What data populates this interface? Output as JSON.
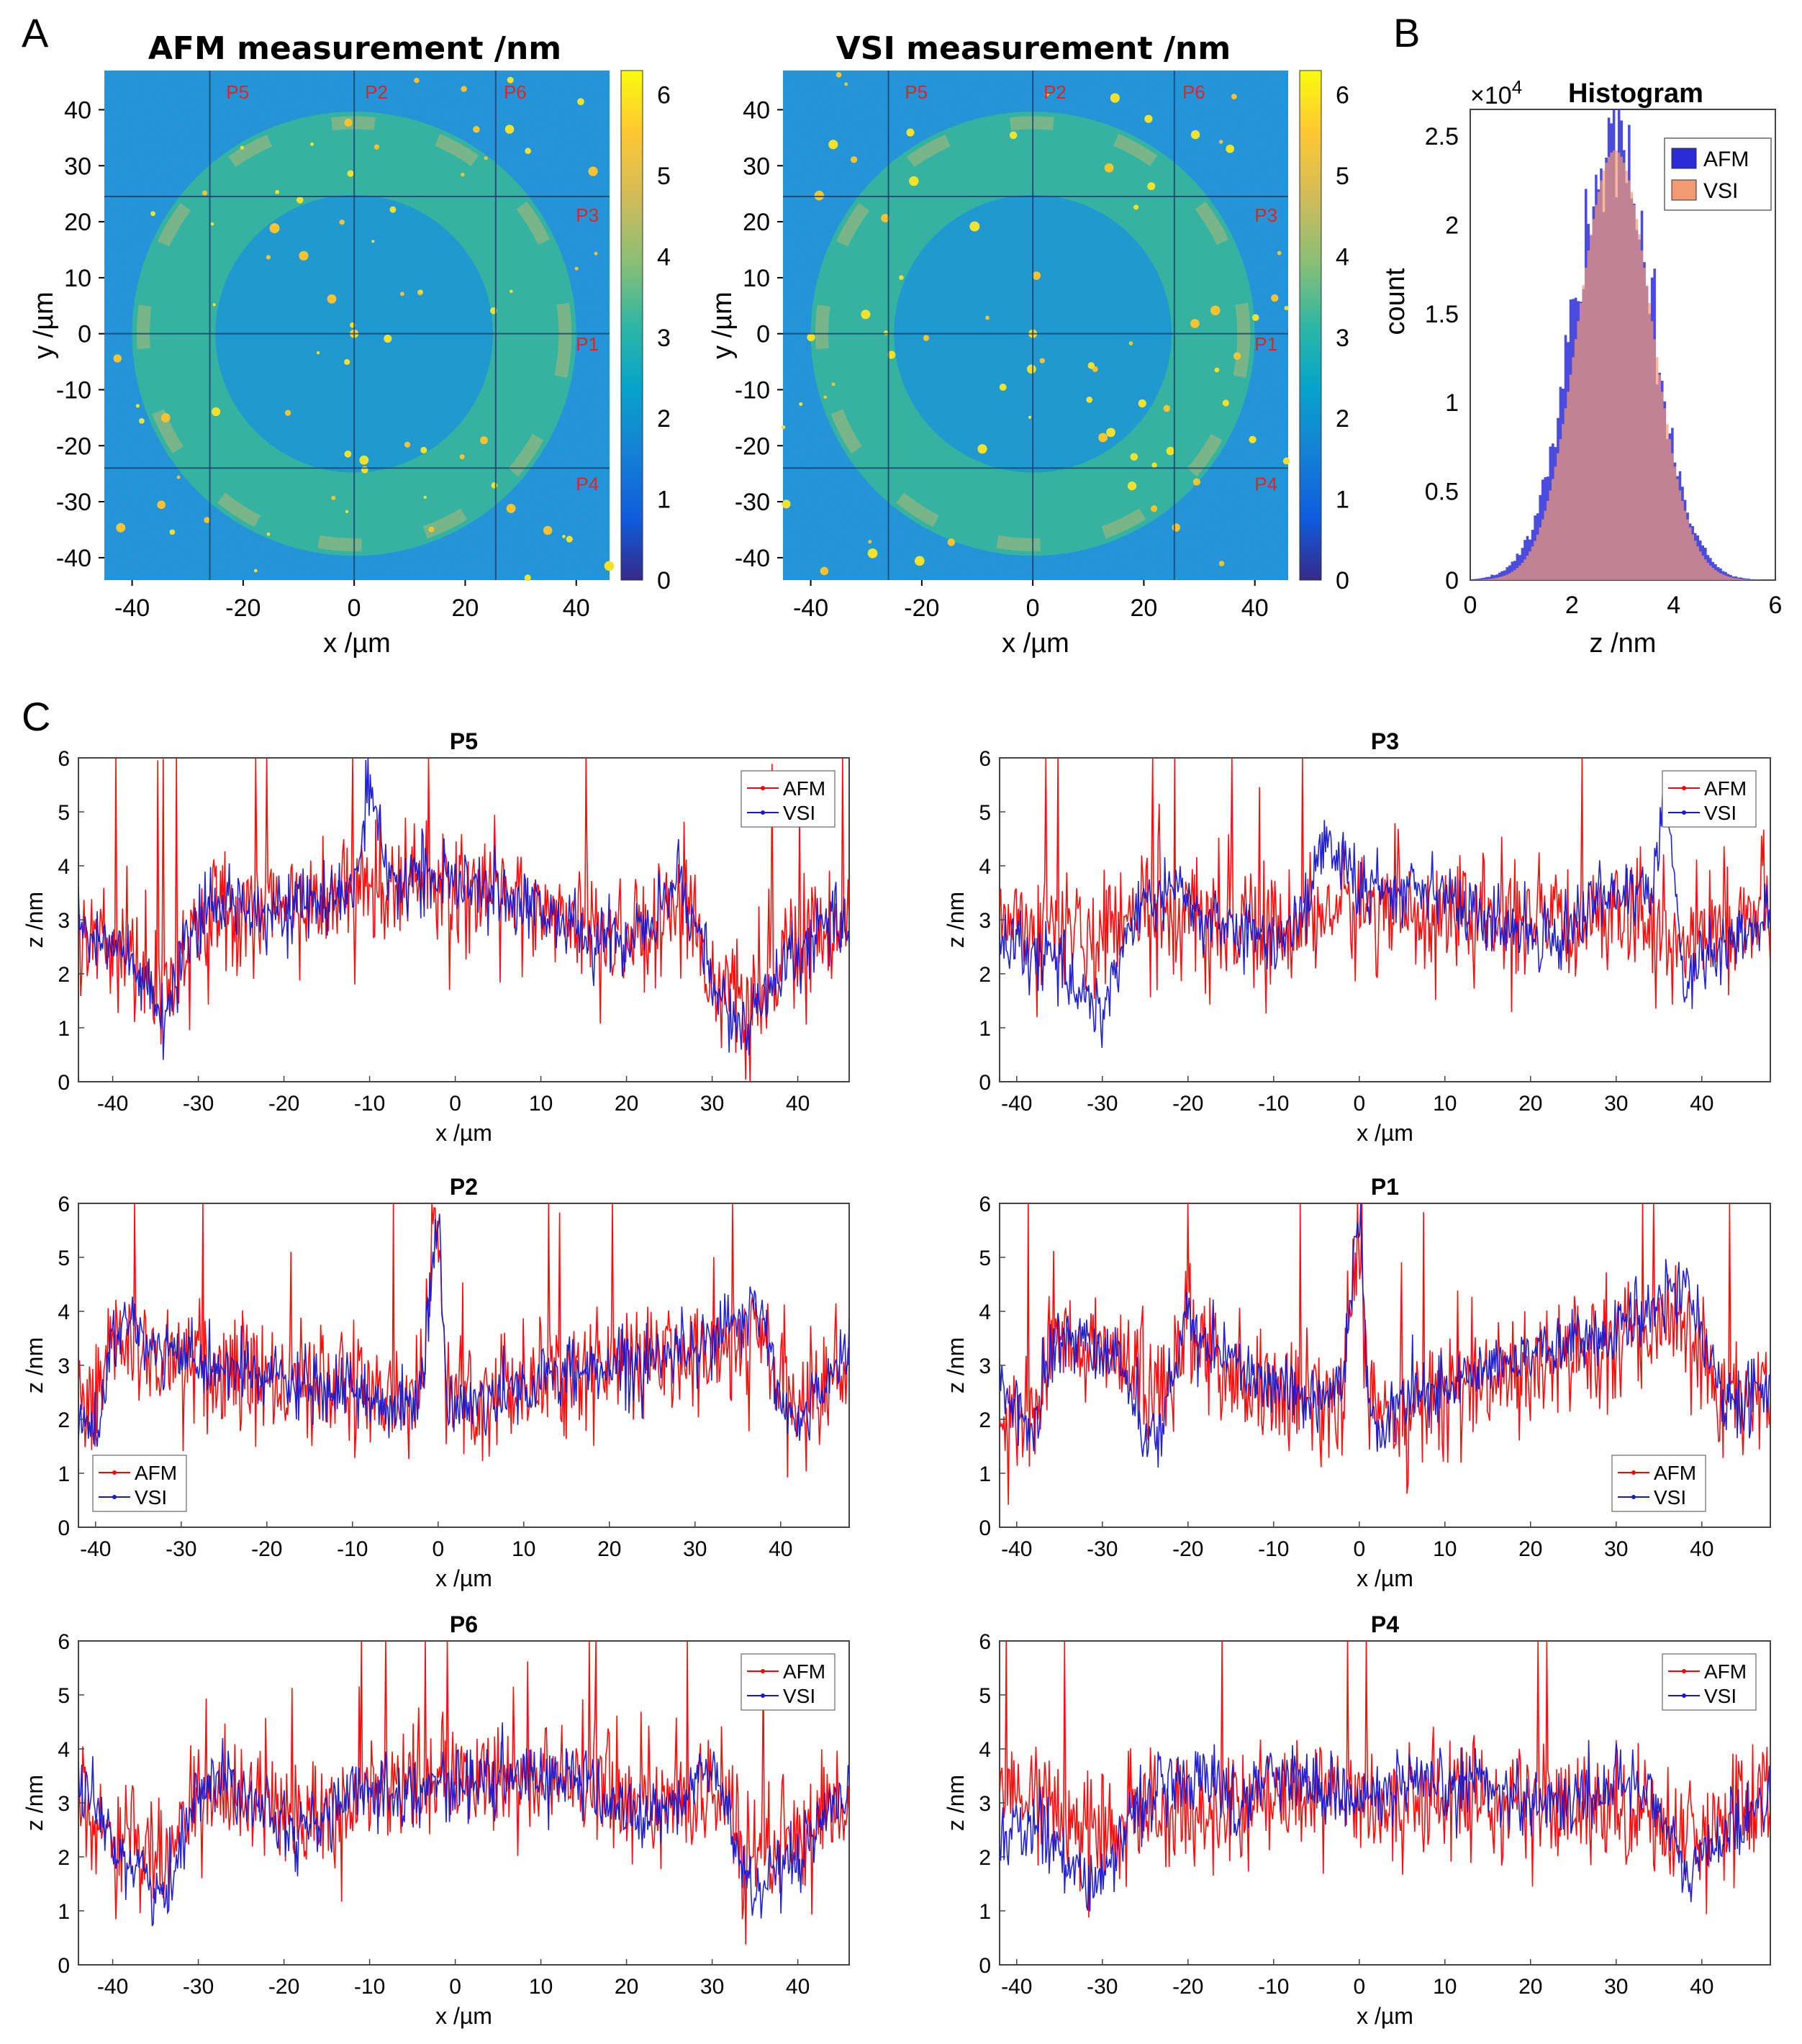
{
  "panels": {
    "a": "A",
    "b": "B",
    "c": "C"
  },
  "maps": [
    {
      "id": "afm",
      "title": "AFM measurement /nm",
      "xlabel": "x /µm",
      "ylabel": "y /µm",
      "xlim": [
        -45,
        46
      ],
      "ylim": [
        -44,
        47
      ],
      "xticks": [
        -40,
        -20,
        0,
        20,
        40
      ],
      "yticks": [
        40,
        30,
        20,
        10,
        0,
        -10,
        -20,
        -30,
        -40
      ],
      "grid_x": [
        -26,
        0,
        25.5
      ],
      "grid_y": [
        24.5,
        0,
        -24
      ],
      "ring_outer_radius": 40,
      "ring_inner_radius": 25,
      "cbar_ticks": [
        6,
        5,
        4,
        3,
        2,
        1,
        0
      ],
      "cbar_range": [
        0,
        6.3
      ],
      "profile_markers": [
        {
          "label": "P5",
          "x": -21,
          "y": 42
        },
        {
          "label": "P2",
          "x": 4,
          "y": 42
        },
        {
          "label": "P6",
          "x": 29,
          "y": 42
        },
        {
          "label": "P3",
          "x": 42,
          "y": 20
        },
        {
          "label": "P1",
          "x": 42,
          "y": -3
        },
        {
          "label": "P4",
          "x": 42,
          "y": -28
        }
      ]
    },
    {
      "id": "vsi",
      "title": "VSI measurement /nm",
      "xlabel": "x /µm",
      "ylabel": "y /µm",
      "xlim": [
        -45,
        46
      ],
      "ylim": [
        -44,
        47
      ],
      "xticks": [
        -40,
        -20,
        0,
        20,
        40
      ],
      "yticks": [
        40,
        30,
        20,
        10,
        0,
        -10,
        -20,
        -30,
        -40
      ],
      "grid_x": [
        -26,
        0,
        25.5
      ],
      "grid_y": [
        24.5,
        0,
        -24
      ],
      "ring_outer_radius": 40,
      "ring_inner_radius": 25,
      "cbar_ticks": [
        6,
        5,
        4,
        3,
        2,
        1,
        0
      ],
      "cbar_range": [
        0,
        6.3
      ],
      "profile_markers": [
        {
          "label": "P5",
          "x": -21,
          "y": 42
        },
        {
          "label": "P2",
          "x": 4,
          "y": 42
        },
        {
          "label": "P6",
          "x": 29,
          "y": 42
        },
        {
          "label": "P3",
          "x": 42,
          "y": 20
        },
        {
          "label": "P1",
          "x": 42,
          "y": -3
        },
        {
          "label": "P4",
          "x": 42,
          "y": -28
        }
      ]
    }
  ],
  "chart_data": [
    {
      "type": "bar",
      "title": "Histogram",
      "xlabel": "z /nm",
      "ylabel": "count",
      "exponent": "×10^4",
      "exponent_base": "×10",
      "exponent_power": "4",
      "xlim": [
        0,
        6
      ],
      "ylim": [
        0,
        2.65
      ],
      "xticks": [
        0,
        2,
        4,
        6
      ],
      "yticks": [
        0,
        0.5,
        1,
        1.5,
        2,
        2.5
      ],
      "series": [
        {
          "name": "AFM",
          "color": "#2b2bd8",
          "mean": 2.8,
          "sd": 0.78,
          "peak": 2.45
        },
        {
          "name": "VSI",
          "color": "#f39a73",
          "mean": 2.85,
          "sd": 0.72,
          "peak": 2.42
        }
      ]
    },
    {
      "type": "line",
      "title": "P5",
      "xlabel": "x /µm",
      "ylabel": "z /nm",
      "xlim": [
        -44,
        46
      ],
      "ylim": [
        0,
        6
      ],
      "xticks": [
        -40,
        -30,
        -20,
        -10,
        0,
        10,
        20,
        30,
        40
      ],
      "yticks": [
        0,
        1,
        2,
        3,
        4,
        5,
        6
      ],
      "legend": "top-right",
      "series": [
        {
          "name": "AFM",
          "color": "#ff0000",
          "x": [
            -44,
            -40,
            -36,
            -34,
            -32,
            -28,
            -24,
            -20,
            -16,
            -12,
            -10,
            -8,
            -4,
            0,
            4,
            8,
            12,
            16,
            20,
            24,
            26,
            28,
            30,
            32,
            34,
            36,
            40,
            44,
            46
          ],
          "y": [
            2.9,
            2.7,
            2.0,
            1.6,
            2.4,
            3.2,
            3.3,
            3.2,
            3.3,
            3.5,
            3.8,
            3.5,
            3.8,
            3.6,
            3.5,
            3.4,
            3.0,
            2.8,
            2.7,
            3.1,
            3.5,
            3.0,
            2.0,
            1.5,
            1.3,
            1.7,
            2.5,
            2.9,
            3.0
          ]
        },
        {
          "name": "VSI",
          "color": "#1818cc",
          "x": [
            -44,
            -40,
            -36,
            -34,
            -32,
            -28,
            -24,
            -20,
            -16,
            -12,
            -10,
            -8,
            -4,
            0,
            4,
            8,
            12,
            16,
            20,
            24,
            26,
            28,
            30,
            32,
            34,
            36,
            40,
            44,
            46
          ],
          "y": [
            2.9,
            2.6,
            1.7,
            1.0,
            2.3,
            3.3,
            3.3,
            3.2,
            3.3,
            3.5,
            5.5,
            3.6,
            3.9,
            3.6,
            3.5,
            3.4,
            3.0,
            2.6,
            2.6,
            3.1,
            3.9,
            3.0,
            1.8,
            1.2,
            1.0,
            1.5,
            2.4,
            2.9,
            3.0
          ]
        }
      ]
    },
    {
      "type": "line",
      "title": "P3",
      "xlabel": "x /µm",
      "ylabel": "z /nm",
      "xlim": [
        -42,
        48
      ],
      "ylim": [
        0,
        6
      ],
      "xticks": [
        -40,
        -30,
        -20,
        -10,
        0,
        10,
        20,
        30,
        40
      ],
      "yticks": [
        0,
        1,
        2,
        3,
        4,
        5,
        6
      ],
      "legend": "top-right",
      "series": [
        {
          "name": "AFM",
          "color": "#ff0000",
          "x": [
            -42,
            -38,
            -34,
            -30,
            -26,
            -22,
            -18,
            -14,
            -10,
            -6,
            -4,
            0,
            4,
            8,
            12,
            16,
            20,
            24,
            28,
            30,
            34,
            36,
            38,
            40,
            44,
            48
          ],
          "y": [
            3.2,
            3.0,
            2.9,
            2.6,
            3.0,
            3.0,
            2.9,
            2.8,
            2.8,
            3.0,
            3.2,
            3.2,
            3.3,
            3.1,
            3.0,
            3.0,
            2.9,
            2.8,
            3.3,
            3.3,
            3.0,
            2.6,
            2.4,
            2.8,
            3.0,
            3.2
          ]
        },
        {
          "name": "VSI",
          "color": "#1818cc",
          "x": [
            -42,
            -38,
            -34,
            -30,
            -26,
            -22,
            -18,
            -14,
            -10,
            -6,
            -4,
            0,
            4,
            8,
            12,
            16,
            20,
            24,
            28,
            30,
            34,
            36,
            38,
            40,
            44,
            48
          ],
          "y": [
            2.5,
            2.4,
            2.0,
            1.3,
            3.2,
            3.6,
            3.0,
            2.8,
            2.5,
            3.4,
            4.5,
            3.6,
            3.5,
            3.8,
            3.2,
            2.9,
            2.8,
            2.7,
            3.6,
            3.4,
            3.5,
            5.2,
            1.7,
            2.3,
            2.6,
            3.0
          ]
        }
      ]
    },
    {
      "type": "line",
      "title": "P2",
      "xlabel": "x /µm",
      "ylabel": "z /nm",
      "xlim": [
        -42,
        48
      ],
      "ylim": [
        0,
        6
      ],
      "xticks": [
        -40,
        -30,
        -20,
        -10,
        0,
        10,
        20,
        30,
        40
      ],
      "yticks": [
        0,
        1,
        2,
        3,
        4,
        5,
        6
      ],
      "legend": "bottom-left",
      "series": [
        {
          "name": "AFM",
          "color": "#ff0000",
          "x": [
            -42,
            -40,
            -38,
            -36,
            -32,
            -28,
            -24,
            -20,
            -16,
            -12,
            -8,
            -4,
            -2,
            0,
            1,
            2,
            4,
            8,
            12,
            16,
            20,
            24,
            28,
            32,
            36,
            38,
            40,
            42,
            46,
            48
          ],
          "y": [
            2.6,
            2.3,
            3.6,
            3.4,
            3.0,
            2.9,
            2.8,
            2.7,
            2.7,
            2.6,
            2.5,
            2.4,
            2.6,
            6.0,
            2.5,
            2.4,
            2.5,
            2.7,
            2.8,
            2.9,
            3.0,
            3.0,
            3.1,
            3.2,
            3.3,
            3.6,
            2.5,
            2.2,
            2.8,
            2.9
          ]
        },
        {
          "name": "VSI",
          "color": "#1818cc",
          "x": [
            -42,
            -40,
            -38,
            -36,
            -32,
            -28,
            -24,
            -20,
            -16,
            -12,
            -8,
            -4,
            -2,
            0,
            1,
            2,
            4,
            8,
            12,
            16,
            20,
            24,
            28,
            32,
            36,
            38,
            40,
            42,
            46,
            48
          ],
          "y": [
            2.0,
            1.7,
            3.5,
            3.7,
            3.2,
            3.0,
            2.9,
            2.8,
            2.6,
            2.5,
            2.4,
            2.2,
            2.4,
            6.0,
            2.3,
            2.2,
            2.3,
            2.5,
            2.7,
            2.9,
            3.0,
            3.1,
            3.3,
            3.6,
            3.8,
            4.0,
            2.2,
            1.8,
            3.0,
            3.3
          ]
        }
      ]
    },
    {
      "type": "line",
      "title": "P1",
      "xlabel": "x /µm",
      "ylabel": "z /nm",
      "xlim": [
        -42,
        48
      ],
      "ylim": [
        0,
        6
      ],
      "xticks": [
        -40,
        -30,
        -20,
        -10,
        0,
        10,
        20,
        30,
        40
      ],
      "yticks": [
        0,
        1,
        2,
        3,
        4,
        5,
        6
      ],
      "legend": "bottom-right",
      "series": [
        {
          "name": "AFM",
          "color": "#ff0000",
          "x": [
            -42,
            -40,
            -38,
            -36,
            -32,
            -28,
            -24,
            -20,
            -16,
            -12,
            -8,
            -4,
            -2,
            0,
            1,
            2,
            4,
            8,
            12,
            16,
            20,
            24,
            28,
            32,
            36,
            38,
            40,
            42,
            44,
            48
          ],
          "y": [
            2.1,
            2.0,
            1.9,
            3.6,
            3.4,
            3.2,
            2.3,
            3.4,
            3.0,
            2.7,
            2.5,
            2.3,
            2.5,
            5.6,
            2.4,
            2.1,
            2.2,
            2.4,
            2.6,
            2.8,
            3.0,
            3.1,
            3.2,
            3.4,
            3.6,
            3.7,
            3.3,
            2.6,
            2.2,
            2.4
          ]
        },
        {
          "name": "VSI",
          "color": "#1818cc",
          "x": [
            -42,
            -40,
            -38,
            -36,
            -32,
            -28,
            -24,
            -20,
            -16,
            -12,
            -8,
            -4,
            -2,
            0,
            1,
            2,
            4,
            8,
            12,
            16,
            20,
            24,
            28,
            32,
            36,
            38,
            40,
            42,
            44,
            48
          ],
          "y": [
            2.6,
            2.2,
            1.8,
            3.4,
            3.5,
            3.1,
            1.5,
            3.8,
            3.2,
            2.8,
            2.6,
            2.4,
            2.6,
            6.0,
            2.5,
            1.7,
            2.2,
            2.5,
            2.7,
            3.0,
            3.3,
            3.5,
            3.5,
            3.7,
            4.2,
            4.5,
            3.6,
            2.5,
            2.3,
            2.6
          ]
        }
      ]
    },
    {
      "type": "line",
      "title": "P6",
      "xlabel": "x /µm",
      "ylabel": "z /nm",
      "xlim": [
        -44,
        46
      ],
      "ylim": [
        0,
        6
      ],
      "xticks": [
        -40,
        -30,
        -20,
        -10,
        0,
        10,
        20,
        30,
        40
      ],
      "yticks": [
        0,
        1,
        2,
        3,
        4,
        5,
        6
      ],
      "legend": "top-right",
      "series": [
        {
          "name": "AFM",
          "color": "#ff0000",
          "x": [
            -44,
            -40,
            -36,
            -34,
            -30,
            -26,
            -22,
            -18,
            -14,
            -10,
            -6,
            -2,
            2,
            6,
            10,
            14,
            18,
            22,
            26,
            30,
            32,
            34,
            36,
            40,
            44,
            46
          ],
          "y": [
            3.0,
            2.6,
            2.2,
            1.9,
            3.3,
            3.3,
            3.0,
            2.6,
            2.9,
            3.2,
            3.2,
            3.3,
            3.4,
            3.4,
            3.4,
            3.5,
            3.2,
            3.0,
            3.1,
            3.3,
            2.8,
            2.2,
            2.0,
            2.3,
            2.9,
            3.0
          ]
        },
        {
          "name": "VSI",
          "color": "#1818cc",
          "x": [
            -44,
            -40,
            -36,
            -34,
            -30,
            -26,
            -22,
            -18,
            -14,
            -10,
            -6,
            -2,
            2,
            6,
            10,
            14,
            18,
            22,
            26,
            30,
            32,
            34,
            36,
            40,
            44,
            46
          ],
          "y": [
            3.2,
            2.3,
            1.6,
            1.1,
            3.4,
            3.4,
            3.0,
            2.4,
            2.9,
            3.3,
            3.2,
            3.3,
            3.4,
            3.4,
            3.5,
            3.5,
            3.0,
            2.7,
            3.0,
            3.7,
            2.7,
            1.5,
            1.4,
            1.9,
            2.8,
            2.9
          ]
        }
      ]
    },
    {
      "type": "line",
      "title": "P4",
      "xlabel": "x /µm",
      "ylabel": "z /nm",
      "xlim": [
        -42,
        48
      ],
      "ylim": [
        0,
        6
      ],
      "xticks": [
        -40,
        -30,
        -20,
        -10,
        0,
        10,
        20,
        30,
        40
      ],
      "yticks": [
        0,
        1,
        2,
        3,
        4,
        5,
        6
      ],
      "legend": "top-right",
      "series": [
        {
          "name": "AFM",
          "color": "#ff0000",
          "x": [
            -42,
            -38,
            -34,
            -30,
            -26,
            -22,
            -18,
            -14,
            -10,
            -6,
            -2,
            2,
            6,
            10,
            14,
            18,
            22,
            26,
            30,
            34,
            38,
            40,
            44,
            48
          ],
          "y": [
            3.3,
            3.0,
            2.7,
            2.3,
            3.0,
            3.0,
            3.0,
            2.9,
            3.0,
            3.1,
            3.1,
            3.0,
            3.1,
            3.1,
            3.2,
            3.0,
            2.9,
            2.8,
            3.0,
            2.8,
            2.4,
            2.5,
            2.9,
            3.0
          ]
        },
        {
          "name": "VSI",
          "color": "#1818cc",
          "x": [
            -42,
            -38,
            -34,
            -30,
            -26,
            -22,
            -18,
            -14,
            -10,
            -6,
            -2,
            2,
            6,
            10,
            14,
            18,
            22,
            26,
            30,
            34,
            38,
            40,
            44,
            48
          ],
          "y": [
            2.4,
            2.6,
            2.0,
            1.4,
            3.1,
            3.2,
            3.6,
            2.9,
            3.7,
            3.3,
            3.2,
            3.1,
            3.3,
            3.2,
            3.5,
            3.1,
            3.0,
            3.1,
            3.4,
            3.3,
            1.6,
            2.0,
            2.6,
            3.2
          ]
        }
      ]
    }
  ]
}
